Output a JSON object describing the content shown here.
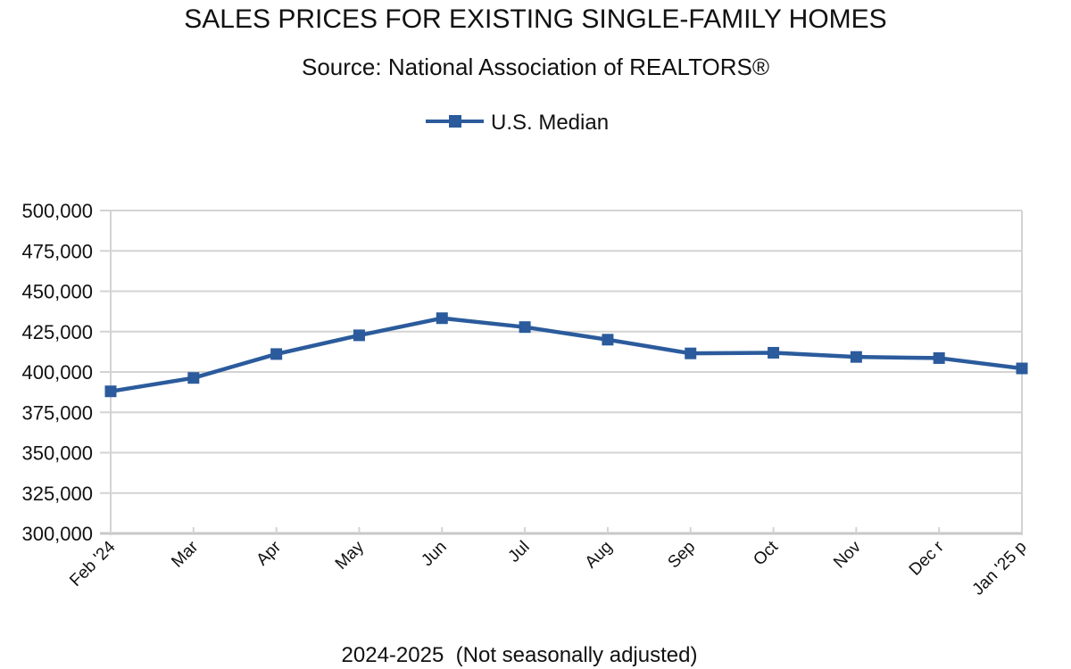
{
  "chart_data": {
    "type": "line",
    "title": "SALES PRICES FOR EXISTING SINGLE-FAMILY HOMES",
    "subtitle": "Source: National Association of REALTORS®",
    "xlabel": "2024-2025  (Not seasonally adjusted)",
    "ylabel": "",
    "categories": [
      "Feb '24",
      "Mar",
      "Apr",
      "May",
      "Jun",
      "Jul",
      "Aug",
      "Sep",
      "Oct",
      "Nov",
      "Dec r",
      "Jan '25 p"
    ],
    "series": [
      {
        "name": "U.S.  Median",
        "color": "#2b5b9c",
        "marker": "square",
        "values": [
          388000,
          396300,
          411100,
          422700,
          433300,
          427800,
          420000,
          411500,
          411900,
          409300,
          408600,
          402200
        ]
      }
    ],
    "ylim": [
      300000,
      500000
    ],
    "yticks": [
      300000,
      325000,
      350000,
      375000,
      400000,
      425000,
      450000,
      475000,
      500000
    ],
    "ytick_labels": [
      "300,000",
      "325,000",
      "350,000",
      "375,000",
      "400,000",
      "425,000",
      "450,000",
      "475,000",
      "500,000"
    ],
    "grid": true,
    "legend_position": "top-center",
    "gridline_color": "#d3d3d3"
  }
}
